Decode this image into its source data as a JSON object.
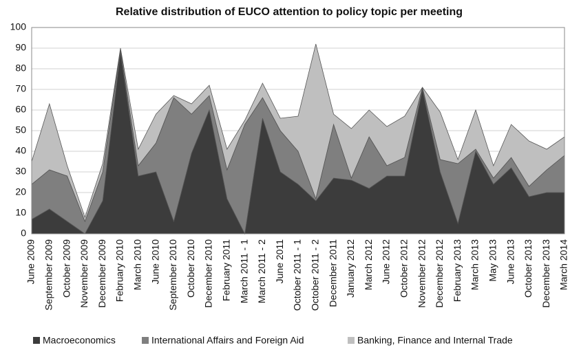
{
  "chart_data": {
    "type": "stacked_area",
    "title": "Relative distribution of EUCO attention to policy topic per meeting",
    "categories": [
      "June 2009",
      "September 2009",
      "October 2009",
      "November 2009",
      "December 2009",
      "February 2010",
      "March 2010",
      "June 2010",
      "September 2010",
      "October 2010",
      "December 2010",
      "February 2011",
      "March 2011 - 1",
      "March 2011 - 2",
      "June 2011",
      "October 2011 - 1",
      "October 2011 - 2",
      "December 2011",
      "January 2012",
      "March 2012",
      "June 2012",
      "October 2012",
      "November 2012",
      "December 2012",
      "February 2013",
      "March 2013",
      "May 2013",
      "June 2013",
      "October 2013",
      "December 2013",
      "March 2014"
    ],
    "series": [
      {
        "name": "Macroeconomics",
        "color": "#3c3c3c",
        "values": [
          7,
          12,
          6,
          0,
          16,
          88,
          28,
          30,
          6,
          39,
          60,
          17,
          0,
          56,
          30,
          24,
          16,
          27,
          26,
          22,
          28,
          28,
          70,
          30,
          5,
          40,
          24,
          32,
          18,
          20,
          20
        ]
      },
      {
        "name": "International Affairs and Foreign Aid",
        "color": "#7f7f7f",
        "values": [
          17,
          19,
          22,
          6,
          14,
          1,
          5,
          14,
          60,
          19,
          7,
          14,
          53,
          10,
          20,
          16,
          1,
          26,
          1,
          25,
          5,
          9,
          1,
          6,
          29,
          1,
          3,
          5,
          5,
          11,
          18
        ]
      },
      {
        "name": "Banking, Finance and Internal Trade",
        "color": "#bfbfbf",
        "values": [
          11,
          32,
          5,
          2,
          4,
          1,
          8,
          14,
          1,
          5,
          5,
          10,
          2,
          7,
          6,
          17,
          75,
          5,
          24,
          13,
          19,
          20,
          0,
          23,
          2,
          19,
          6,
          16,
          22,
          10,
          9
        ]
      }
    ],
    "ylim": [
      0,
      100
    ],
    "yticks": [
      0,
      10,
      20,
      30,
      40,
      50,
      60,
      70,
      80,
      90,
      100
    ],
    "grid": true
  }
}
